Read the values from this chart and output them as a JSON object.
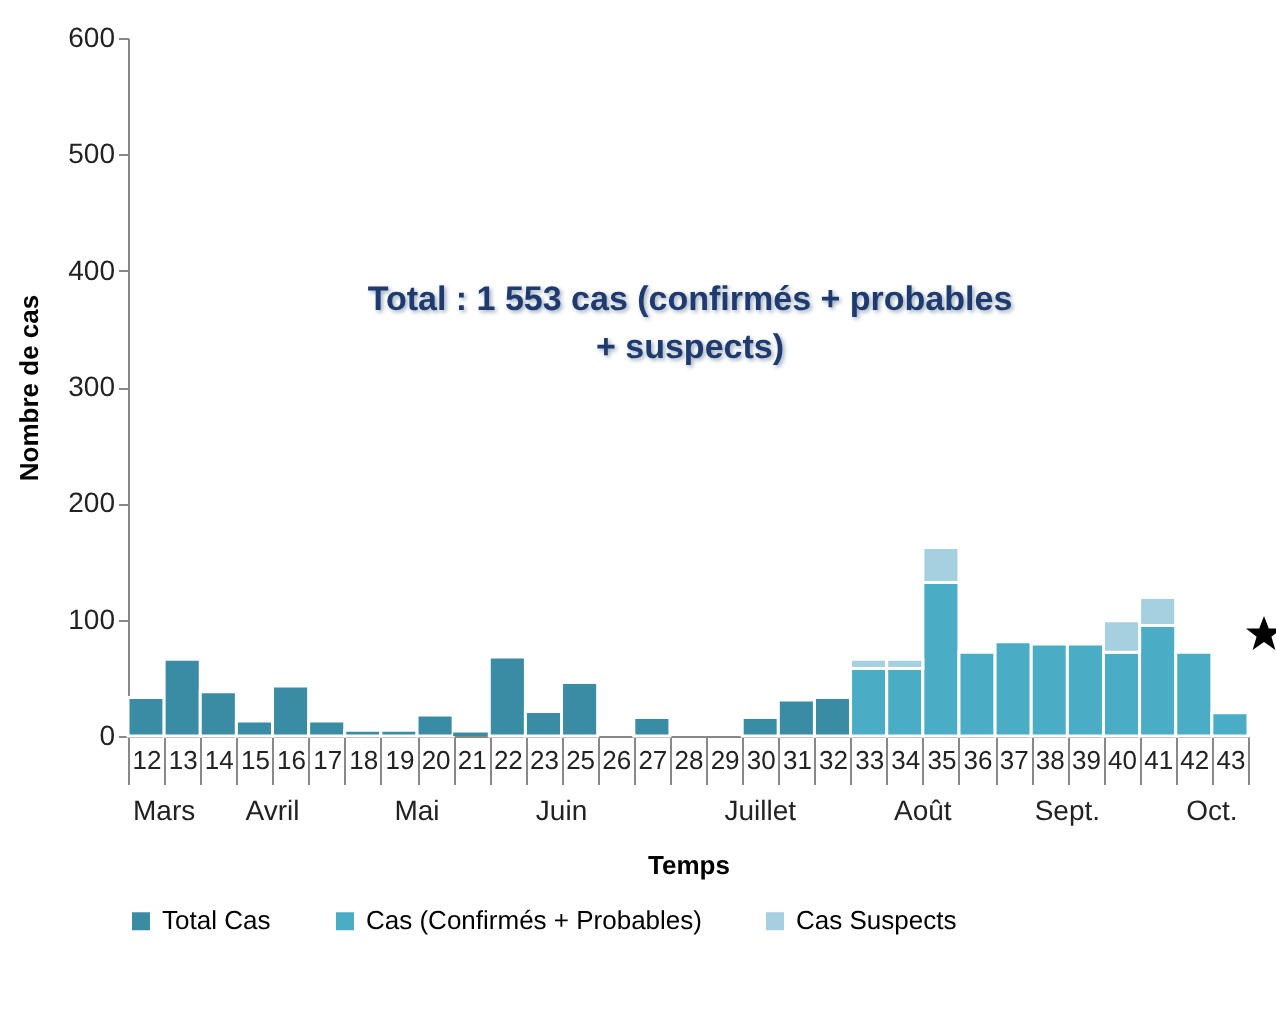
{
  "chart_data": {
    "type": "bar",
    "stacked": true,
    "xlabel": "Temps",
    "ylabel": "Nombre de cas",
    "categories": [
      "12",
      "13",
      "14",
      "15",
      "16",
      "17",
      "18",
      "19",
      "20",
      "21",
      "22",
      "23",
      "25",
      "26",
      "27",
      "28",
      "29",
      "30",
      "31",
      "32",
      "33",
      "34",
      "35",
      "36",
      "37",
      "38",
      "39",
      "40",
      "41",
      "42",
      "43"
    ],
    "series": [
      {
        "name": "Total Cas",
        "color": "#3a8ca4",
        "values": [
          33,
          66,
          38,
          13,
          43,
          13,
          5,
          5,
          18,
          3,
          68,
          21,
          46,
          0,
          16,
          0,
          0,
          16,
          31,
          33,
          null,
          null,
          null,
          null,
          null,
          null,
          null,
          null,
          null,
          null,
          null
        ]
      },
      {
        "name": "Cas (Confirmés + Probables)",
        "color": "#4bacc6",
        "values": [
          null,
          null,
          null,
          null,
          null,
          null,
          null,
          null,
          null,
          null,
          null,
          null,
          null,
          null,
          null,
          null,
          null,
          null,
          null,
          null,
          58,
          58,
          132,
          72,
          81,
          79,
          79,
          72,
          95,
          72,
          20
        ]
      },
      {
        "name": "Cas Suspects",
        "color": "#a5d0e0",
        "values": [
          null,
          null,
          null,
          null,
          null,
          null,
          null,
          null,
          null,
          null,
          null,
          null,
          null,
          null,
          null,
          null,
          null,
          null,
          null,
          null,
          8,
          8,
          30,
          null,
          null,
          null,
          null,
          27,
          24,
          null,
          null
        ]
      }
    ],
    "ylim": [
      0,
      600
    ],
    "yticks": [
      0,
      100,
      200,
      300,
      400,
      500,
      600
    ],
    "grid": false,
    "legend": "bottom",
    "annotations": [
      "Total : 1 553 cas (confirmés + probables + suspects)",
      "Mars",
      "Avril",
      "Mai",
      "Juin",
      "Juillet",
      "Août",
      "Sept.",
      "Oct."
    ]
  }
}
